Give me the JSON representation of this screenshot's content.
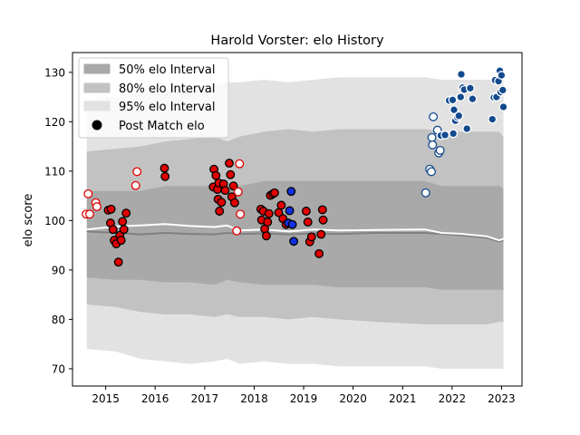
{
  "chart_data": {
    "type": "scatter",
    "title": "Harold Vorster: elo History",
    "xlabel": "",
    "ylabel": "elo score",
    "xlim": [
      "2014-05-01",
      "2023-06-01"
    ],
    "ylim": [
      66.5,
      134
    ],
    "x_ticks": [
      "2015",
      "2016",
      "2017",
      "2018",
      "2019",
      "2020",
      "2021",
      "2022",
      "2023"
    ],
    "y_ticks": [
      "70",
      "80",
      "90",
      "100",
      "110",
      "120",
      "130"
    ],
    "grid": false,
    "legend_position": "top-left",
    "legend": [
      {
        "label": "50% elo Interval",
        "kind": "band",
        "color": "#a9a9a9"
      },
      {
        "label": "80% elo Interval",
        "kind": "band",
        "color": "#c2c2c2"
      },
      {
        "label": "95% elo Interval",
        "kind": "band",
        "color": "#e2e2e2"
      },
      {
        "label": "Post Match elo",
        "kind": "marker",
        "color": "#000000"
      }
    ],
    "colors": {
      "red": "#e00000",
      "blue": "#1030e0",
      "navy": "#134a8e",
      "median_line": "#808080",
      "mean_line": "#ffffff"
    },
    "bands": {
      "x": [
        "2014-08-15",
        "2015-03-15",
        "2015-09-15",
        "2016-03-15",
        "2016-09-15",
        "2017-03-15",
        "2017-06-15",
        "2017-09-15",
        "2018-03-15",
        "2018-09-15",
        "2019-03-15",
        "2019-09-15",
        "2020-06-15",
        "2021-06-15",
        "2021-10-15",
        "2022-03-15",
        "2022-09-15",
        "2022-12-15",
        "2023-01-15"
      ],
      "p95_high": [
        124.5,
        125,
        126,
        126.5,
        127,
        127.5,
        128,
        128,
        128.5,
        128,
        128.5,
        129,
        129,
        129,
        128.5,
        128.5,
        128.5,
        128.5,
        128.5
      ],
      "p95_low": [
        74,
        73.5,
        72,
        71.5,
        71,
        71.5,
        72,
        71,
        71.5,
        71,
        71,
        70.5,
        70.5,
        70.5,
        70,
        70,
        70,
        70,
        70
      ],
      "p80_high": [
        114,
        114.5,
        115,
        116,
        116.5,
        117,
        116,
        117,
        118,
        118.5,
        118,
        118.5,
        118.5,
        118.5,
        118,
        118,
        118,
        118,
        117
      ],
      "p80_low": [
        83,
        82.5,
        81.5,
        81,
        81,
        80.5,
        81,
        80.5,
        80.5,
        80,
        80.5,
        80,
        79.5,
        79,
        79,
        79,
        79,
        79.5,
        79.5
      ],
      "p50_high": [
        106,
        106,
        106,
        107,
        107,
        107,
        106,
        107,
        108,
        108,
        108,
        108,
        108,
        108,
        107,
        107,
        107,
        107,
        106.5
      ],
      "p50_low": [
        88.5,
        88,
        88,
        87.5,
        87.5,
        87,
        88,
        87.5,
        87,
        87,
        87,
        86.5,
        86.5,
        86.5,
        86,
        86,
        86,
        86,
        86
      ],
      "median": [
        97.8,
        97.5,
        97.2,
        97.5,
        97.3,
        97.2,
        97.5,
        97.3,
        97.4,
        97.2,
        97.4,
        97.3,
        97.5,
        97.5,
        97.3,
        97.0,
        96.5,
        95.8,
        96.0
      ],
      "mean": [
        98.2,
        98.8,
        99.0,
        99.3,
        98.9,
        98.7,
        99.0,
        98.0,
        98.2,
        97.8,
        98.2,
        98.0,
        98.1,
        98.2,
        97.5,
        97.3,
        96.8,
        96.0,
        96.3
      ]
    },
    "points": [
      {
        "x": "2014-08-10",
        "y": 101.3,
        "fill": "white",
        "edge": "red"
      },
      {
        "x": "2014-08-25",
        "y": 105.4,
        "fill": "white",
        "edge": "red"
      },
      {
        "x": "2014-09-05",
        "y": 101.3,
        "fill": "white",
        "edge": "red"
      },
      {
        "x": "2014-10-20",
        "y": 103.6,
        "fill": "white",
        "edge": "red"
      },
      {
        "x": "2014-10-28",
        "y": 102.8,
        "fill": "white",
        "edge": "red"
      },
      {
        "x": "2015-01-20",
        "y": 102.1,
        "fill": "red",
        "edge": "black"
      },
      {
        "x": "2015-02-10",
        "y": 102.3,
        "fill": "red",
        "edge": "black"
      },
      {
        "x": "2015-02-05",
        "y": 99.5,
        "fill": "red",
        "edge": "black"
      },
      {
        "x": "2015-02-25",
        "y": 98.2,
        "fill": "red",
        "edge": "black"
      },
      {
        "x": "2015-03-05",
        "y": 96.0,
        "fill": "red",
        "edge": "black"
      },
      {
        "x": "2015-03-20",
        "y": 95.3,
        "fill": "red",
        "edge": "black"
      },
      {
        "x": "2015-04-05",
        "y": 91.6,
        "fill": "red",
        "edge": "black"
      },
      {
        "x": "2015-04-15",
        "y": 97.0,
        "fill": "red",
        "edge": "black"
      },
      {
        "x": "2015-04-25",
        "y": 96.0,
        "fill": "red",
        "edge": "black"
      },
      {
        "x": "2015-05-05",
        "y": 99.8,
        "fill": "red",
        "edge": "black"
      },
      {
        "x": "2015-05-15",
        "y": 98.2,
        "fill": "red",
        "edge": "black"
      },
      {
        "x": "2015-06-01",
        "y": 101.5,
        "fill": "red",
        "edge": "black"
      },
      {
        "x": "2015-08-10",
        "y": 107.1,
        "fill": "white",
        "edge": "red"
      },
      {
        "x": "2015-08-20",
        "y": 109.9,
        "fill": "white",
        "edge": "red"
      },
      {
        "x": "2016-03-10",
        "y": 110.6,
        "fill": "red",
        "edge": "black"
      },
      {
        "x": "2016-03-15",
        "y": 108.9,
        "fill": "red",
        "edge": "black"
      },
      {
        "x": "2017-03-10",
        "y": 110.4,
        "fill": "red",
        "edge": "black"
      },
      {
        "x": "2017-03-05",
        "y": 106.8,
        "fill": "red",
        "edge": "black"
      },
      {
        "x": "2017-03-25",
        "y": 109.1,
        "fill": "red",
        "edge": "black"
      },
      {
        "x": "2017-04-05",
        "y": 106.3,
        "fill": "red",
        "edge": "black"
      },
      {
        "x": "2017-04-10",
        "y": 104.3,
        "fill": "red",
        "edge": "black"
      },
      {
        "x": "2017-04-15",
        "y": 107.6,
        "fill": "red",
        "edge": "black"
      },
      {
        "x": "2017-04-20",
        "y": 101.9,
        "fill": "red",
        "edge": "black"
      },
      {
        "x": "2017-05-05",
        "y": 103.7,
        "fill": "red",
        "edge": "black"
      },
      {
        "x": "2017-05-20",
        "y": 107.4,
        "fill": "red",
        "edge": "black"
      },
      {
        "x": "2017-06-01",
        "y": 106.1,
        "fill": "red",
        "edge": "black"
      },
      {
        "x": "2017-07-01",
        "y": 111.6,
        "fill": "red",
        "edge": "black"
      },
      {
        "x": "2017-07-10",
        "y": 109.3,
        "fill": "red",
        "edge": "black"
      },
      {
        "x": "2017-07-20",
        "y": 104.8,
        "fill": "red",
        "edge": "black"
      },
      {
        "x": "2017-08-01",
        "y": 107.0,
        "fill": "red",
        "edge": "black"
      },
      {
        "x": "2017-08-10",
        "y": 103.6,
        "fill": "red",
        "edge": "black"
      },
      {
        "x": "2017-08-25",
        "y": 97.9,
        "fill": "white",
        "edge": "red"
      },
      {
        "x": "2017-09-05",
        "y": 105.8,
        "fill": "white",
        "edge": "red"
      },
      {
        "x": "2017-09-15",
        "y": 111.5,
        "fill": "white",
        "edge": "red"
      },
      {
        "x": "2017-09-20",
        "y": 101.3,
        "fill": "white",
        "edge": "red"
      },
      {
        "x": "2018-02-20",
        "y": 102.3,
        "fill": "red",
        "edge": "black"
      },
      {
        "x": "2018-02-25",
        "y": 100.1,
        "fill": "red",
        "edge": "black"
      },
      {
        "x": "2018-03-10",
        "y": 101.9,
        "fill": "red",
        "edge": "black"
      },
      {
        "x": "2018-03-20",
        "y": 98.3,
        "fill": "red",
        "edge": "black"
      },
      {
        "x": "2018-04-01",
        "y": 96.9,
        "fill": "red",
        "edge": "black"
      },
      {
        "x": "2018-04-10",
        "y": 99.7,
        "fill": "red",
        "edge": "black"
      },
      {
        "x": "2018-04-20",
        "y": 101.4,
        "fill": "red",
        "edge": "black"
      },
      {
        "x": "2018-05-01",
        "y": 105.1,
        "fill": "red",
        "edge": "black"
      },
      {
        "x": "2018-05-20",
        "y": 105.4,
        "fill": "red",
        "edge": "black"
      },
      {
        "x": "2018-06-01",
        "y": 105.6,
        "fill": "red",
        "edge": "black"
      },
      {
        "x": "2018-07-01",
        "y": 101.6,
        "fill": "red",
        "edge": "black"
      },
      {
        "x": "2018-07-20",
        "y": 103.1,
        "fill": "red",
        "edge": "black"
      },
      {
        "x": "2018-08-01",
        "y": 100.4,
        "fill": "red",
        "edge": "black"
      },
      {
        "x": "2018-08-25",
        "y": 99.2,
        "fill": "red",
        "edge": "black"
      },
      {
        "x": "2018-09-10",
        "y": 99.5,
        "fill": "blue",
        "edge": "black"
      },
      {
        "x": "2018-09-20",
        "y": 102.0,
        "fill": "blue",
        "edge": "black"
      },
      {
        "x": "2018-10-01",
        "y": 105.9,
        "fill": "blue",
        "edge": "black"
      },
      {
        "x": "2018-10-10",
        "y": 99.2,
        "fill": "blue",
        "edge": "black"
      },
      {
        "x": "2018-10-20",
        "y": 95.8,
        "fill": "blue",
        "edge": "black"
      },
      {
        "x": "2019-01-20",
        "y": 101.9,
        "fill": "red",
        "edge": "black"
      },
      {
        "x": "2019-02-01",
        "y": 99.7,
        "fill": "red",
        "edge": "black"
      },
      {
        "x": "2019-02-15",
        "y": 95.7,
        "fill": "red",
        "edge": "black"
      },
      {
        "x": "2019-03-01",
        "y": 96.7,
        "fill": "red",
        "edge": "black"
      },
      {
        "x": "2019-04-25",
        "y": 93.3,
        "fill": "red",
        "edge": "black"
      },
      {
        "x": "2019-05-20",
        "y": 102.2,
        "fill": "red",
        "edge": "black"
      },
      {
        "x": "2019-05-25",
        "y": 100.1,
        "fill": "red",
        "edge": "black"
      },
      {
        "x": "2019-05-10",
        "y": 97.2,
        "fill": "red",
        "edge": "black"
      },
      {
        "x": "2021-06-20",
        "y": 105.6,
        "fill": "white",
        "edge": "navy"
      },
      {
        "x": "2021-07-20",
        "y": 110.4,
        "fill": "white",
        "edge": "navy"
      },
      {
        "x": "2021-08-01",
        "y": 109.9,
        "fill": "white",
        "edge": "navy"
      },
      {
        "x": "2021-08-05",
        "y": 116.8,
        "fill": "white",
        "edge": "navy"
      },
      {
        "x": "2021-08-10",
        "y": 115.3,
        "fill": "white",
        "edge": "navy"
      },
      {
        "x": "2021-08-15",
        "y": 121.0,
        "fill": "white",
        "edge": "navy"
      },
      {
        "x": "2021-09-15",
        "y": 118.3,
        "fill": "white",
        "edge": "navy"
      },
      {
        "x": "2021-09-25",
        "y": 113.7,
        "fill": "white",
        "edge": "navy"
      },
      {
        "x": "2021-10-05",
        "y": 114.2,
        "fill": "white",
        "edge": "navy"
      },
      {
        "x": "2021-10-10",
        "y": 117.2,
        "fill": "navy",
        "edge": "white"
      },
      {
        "x": "2021-11-10",
        "y": 117.3,
        "fill": "navy",
        "edge": "white"
      },
      {
        "x": "2021-12-10",
        "y": 124.3,
        "fill": "navy",
        "edge": "white"
      },
      {
        "x": "2022-01-05",
        "y": 124.4,
        "fill": "navy",
        "edge": "white"
      },
      {
        "x": "2022-01-15",
        "y": 122.4,
        "fill": "navy",
        "edge": "white"
      },
      {
        "x": "2022-01-10",
        "y": 117.6,
        "fill": "navy",
        "edge": "white"
      },
      {
        "x": "2022-01-25",
        "y": 120.2,
        "fill": "navy",
        "edge": "white"
      },
      {
        "x": "2022-02-10",
        "y": 120.9,
        "fill": "navy",
        "edge": "white"
      },
      {
        "x": "2022-02-20",
        "y": 121.2,
        "fill": "navy",
        "edge": "white"
      },
      {
        "x": "2022-03-05",
        "y": 125.0,
        "fill": "navy",
        "edge": "white"
      },
      {
        "x": "2022-03-10",
        "y": 129.6,
        "fill": "navy",
        "edge": "white"
      },
      {
        "x": "2022-03-20",
        "y": 126.9,
        "fill": "navy",
        "edge": "white"
      },
      {
        "x": "2022-04-01",
        "y": 126.5,
        "fill": "navy",
        "edge": "white"
      },
      {
        "x": "2022-04-20",
        "y": 118.6,
        "fill": "navy",
        "edge": "white"
      },
      {
        "x": "2022-05-15",
        "y": 126.8,
        "fill": "navy",
        "edge": "white"
      },
      {
        "x": "2022-06-01",
        "y": 124.6,
        "fill": "navy",
        "edge": "white"
      },
      {
        "x": "2022-10-25",
        "y": 120.5,
        "fill": "navy",
        "edge": "white"
      },
      {
        "x": "2022-11-05",
        "y": 124.9,
        "fill": "navy",
        "edge": "white"
      },
      {
        "x": "2022-11-15",
        "y": 128.4,
        "fill": "navy",
        "edge": "white"
      },
      {
        "x": "2022-11-25",
        "y": 125.0,
        "fill": "navy",
        "edge": "white"
      },
      {
        "x": "2022-12-10",
        "y": 128.2,
        "fill": "navy",
        "edge": "white"
      },
      {
        "x": "2022-12-20",
        "y": 130.3,
        "fill": "navy",
        "edge": "white"
      },
      {
        "x": "2023-01-01",
        "y": 129.4,
        "fill": "navy",
        "edge": "white"
      },
      {
        "x": "2022-12-25",
        "y": 126.0,
        "fill": "navy",
        "edge": "white"
      },
      {
        "x": "2023-01-10",
        "y": 126.4,
        "fill": "navy",
        "edge": "white"
      },
      {
        "x": "2023-01-15",
        "y": 123.0,
        "fill": "navy",
        "edge": "white"
      }
    ]
  }
}
